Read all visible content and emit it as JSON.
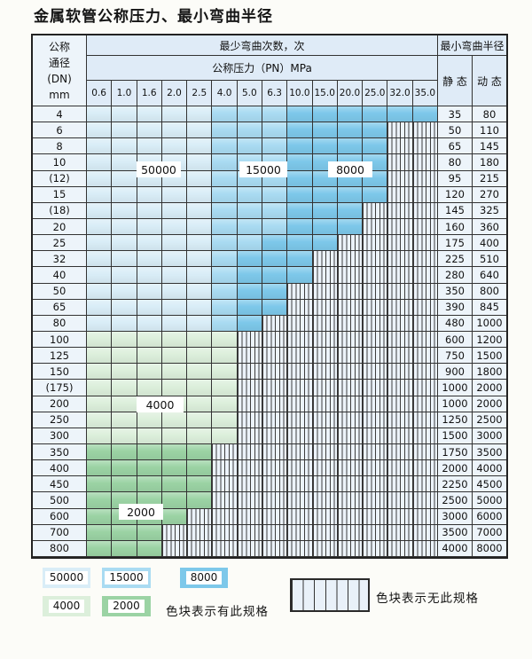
{
  "title": "金属软管公称压力、最小弯曲半径",
  "table": {
    "header": {
      "dn_lines": [
        "公称",
        "通径",
        "(DN)",
        "mm"
      ],
      "cycles_title": "最少弯曲次数，次",
      "pressure_title": "公称压力（PN）MPa",
      "pressure_ticks": [
        "0.6",
        "1.0",
        "1.6",
        "2.0",
        "2.5",
        "4.0",
        "5.0",
        "6.3",
        "10.0",
        "15.0",
        "20.0",
        "25.0",
        "32.0",
        "35.0"
      ],
      "radius_title": "最小弯曲半径",
      "static_label": "静 态",
      "dynamic_label": "动 态"
    },
    "band_labels": {
      "b50000": "50000",
      "b15000": "15000",
      "b8000": "8000",
      "b4000": "4000",
      "b2000": "2000"
    },
    "cell_code_meaning": {
      "L": "50000",
      "M": "15000",
      "D": "8000",
      "G": "4000",
      "E": "2000",
      "X": "no-spec"
    },
    "rows": [
      {
        "dn": "4",
        "cells": "LLLLLMMMDDDDDD",
        "static": "35",
        "dynamic": "80"
      },
      {
        "dn": "6",
        "cells": "LLLLLMMMDDDDXX",
        "static": "50",
        "dynamic": "110"
      },
      {
        "dn": "8",
        "cells": "LLLLLMMMDDDDXX",
        "static": "65",
        "dynamic": "145"
      },
      {
        "dn": "10",
        "cells": "LLLLLMMMDDDDXX",
        "static": "80",
        "dynamic": "180"
      },
      {
        "dn": "(12)",
        "cells": "LLLLLMMMDDDDXX",
        "static": "95",
        "dynamic": "215"
      },
      {
        "dn": "15",
        "cells": "LLLLLMMMDDDDXX",
        "static": "120",
        "dynamic": "270"
      },
      {
        "dn": "(18)",
        "cells": "LLLLLMMMDDDXXX",
        "static": "145",
        "dynamic": "325"
      },
      {
        "dn": "20",
        "cells": "LLLLLMMMDDDXXX",
        "static": "160",
        "dynamic": "360"
      },
      {
        "dn": "25",
        "cells": "LLLLLMMDDDXXXX",
        "static": "175",
        "dynamic": "400"
      },
      {
        "dn": "32",
        "cells": "LLLLLMDDDXXXXX",
        "static": "225",
        "dynamic": "510"
      },
      {
        "dn": "40",
        "cells": "LLLLLMDDDXXXXX",
        "static": "280",
        "dynamic": "640"
      },
      {
        "dn": "50",
        "cells": "LLLLLMDDXXXXXX",
        "static": "350",
        "dynamic": "800"
      },
      {
        "dn": "65",
        "cells": "LLLLLMDDXXXXXX",
        "static": "390",
        "dynamic": "845"
      },
      {
        "dn": "80",
        "cells": "LLLLLMDXXXXXXX",
        "static": "480",
        "dynamic": "1000"
      },
      {
        "dn": "100",
        "cells": "GGGGGGXXXXXXXX",
        "static": "600",
        "dynamic": "1200"
      },
      {
        "dn": "125",
        "cells": "GGGGGGXXXXXXXX",
        "static": "750",
        "dynamic": "1500"
      },
      {
        "dn": "150",
        "cells": "GGGGGGXXXXXXXX",
        "static": "900",
        "dynamic": "1800"
      },
      {
        "dn": "(175)",
        "cells": "GGGGGGXXXXXXXX",
        "static": "1000",
        "dynamic": "2000"
      },
      {
        "dn": "200",
        "cells": "GGGGGGXXXXXXXX",
        "static": "1000",
        "dynamic": "2000"
      },
      {
        "dn": "250",
        "cells": "GGGGGGXXXXXXXX",
        "static": "1250",
        "dynamic": "2500"
      },
      {
        "dn": "300",
        "cells": "GGGGGGXXXXXXXX",
        "static": "1500",
        "dynamic": "3000"
      },
      {
        "dn": "350",
        "cells": "EEEEEXXXXXXXXX",
        "static": "1750",
        "dynamic": "3500"
      },
      {
        "dn": "400",
        "cells": "EEEEEXXXXXXXXX",
        "static": "2000",
        "dynamic": "4000"
      },
      {
        "dn": "450",
        "cells": "EEEEEXXXXXXXXX",
        "static": "2250",
        "dynamic": "4500"
      },
      {
        "dn": "500",
        "cells": "EEEEEXXXXXXXXX",
        "static": "2500",
        "dynamic": "5000"
      },
      {
        "dn": "600",
        "cells": "EEEEXXXXXXXXXX",
        "static": "3000",
        "dynamic": "6000"
      },
      {
        "dn": "700",
        "cells": "EEEXXXXXXXXXXX",
        "static": "3500",
        "dynamic": "7000"
      },
      {
        "dn": "800",
        "cells": "EEEXXXXXXXXXXX",
        "static": "4000",
        "dynamic": "8000"
      }
    ]
  },
  "legend": {
    "items": [
      {
        "label": "50000",
        "color": "#d9edf7"
      },
      {
        "label": "15000",
        "color": "#a9dbf2"
      },
      {
        "label": "8000",
        "color": "#7dc8ea"
      },
      {
        "label": "4000",
        "color": "#dcefdb"
      },
      {
        "label": "2000",
        "color": "#9bd3a4"
      }
    ],
    "has_spec_text": "色块表示有此规格",
    "no_spec_text": "色块表示无此规格"
  },
  "colors": {
    "band_50000": "#d9edf7",
    "band_15000": "#a9dbf2",
    "band_8000": "#7dc8ea",
    "band_4000": "#dcefdb",
    "band_2000": "#9bd3a4",
    "no_spec_bg": "#ecf3fa",
    "header_bg": "#dfebf7",
    "label_bg": "#edf4fa",
    "grid": "#333333"
  }
}
